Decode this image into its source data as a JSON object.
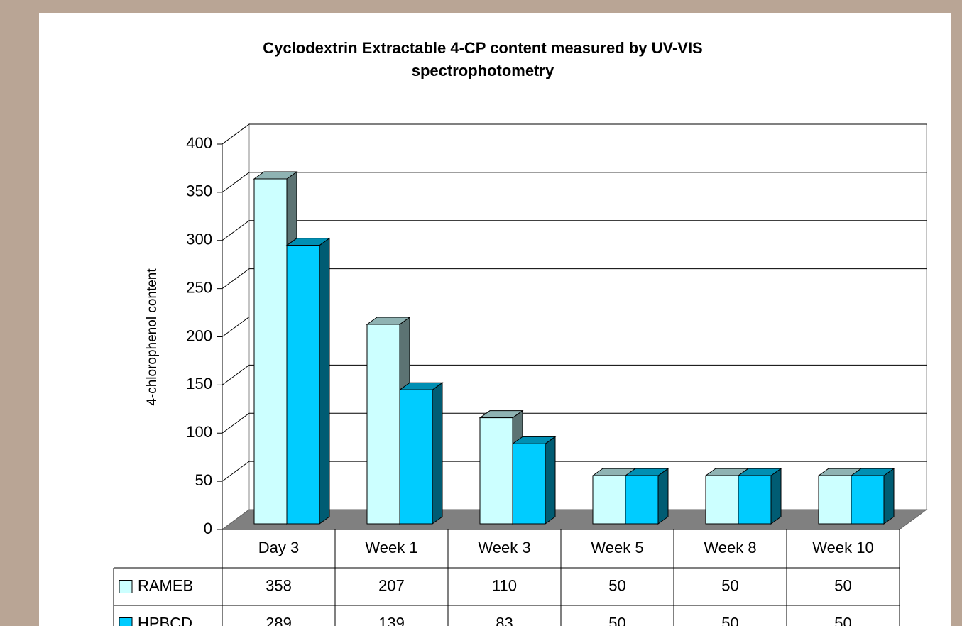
{
  "chart_data": {
    "type": "bar3d",
    "title": "Cyclodextrin Extractable 4-CP content measured by UV-VIS spectrophotometry",
    "ylabel": "4-chlorophenol content",
    "categories": [
      "Day 3",
      "Week 1",
      "Week 3",
      "Week 5",
      "Week 8",
      "Week 10"
    ],
    "series": [
      {
        "name": "RAMEB",
        "color": "#ccffff",
        "values": [
          358,
          207,
          110,
          50,
          50,
          50
        ]
      },
      {
        "name": "HPBCD",
        "color": "#00ccff",
        "values": [
          289,
          139,
          83,
          50,
          50,
          50
        ]
      }
    ],
    "ylim": [
      0,
      400
    ],
    "yticks": [
      0,
      50,
      100,
      150,
      200,
      250,
      300,
      350,
      400
    ],
    "grid": true
  }
}
